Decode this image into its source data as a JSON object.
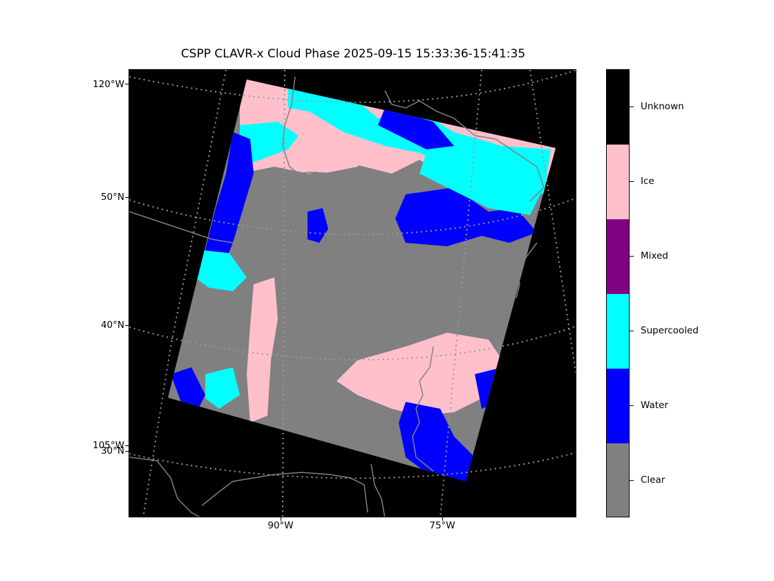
{
  "title": "CSPP CLAVR-x Cloud Phase 2025-09-15 15:33:36-15:41:35",
  "map": {
    "lat_labels": [
      "120°W",
      "50°N",
      "40°N",
      "105°W",
      "30°N"
    ],
    "lon_labels": [
      "90°W",
      "75°W"
    ],
    "background_color": "#000000",
    "coastline_color": "#808080",
    "gridline_color": "#999999",
    "gridline_style": "dotted"
  },
  "colorbar": {
    "categories": [
      {
        "label": "Unknown",
        "color": "#000000"
      },
      {
        "label": "Ice",
        "color": "#ffc0cb"
      },
      {
        "label": "Mixed",
        "color": "#800080"
      },
      {
        "label": "Supercooled",
        "color": "#00ffff"
      },
      {
        "label": "Water",
        "color": "#0000ff"
      },
      {
        "label": "Clear",
        "color": "#808080"
      }
    ]
  }
}
